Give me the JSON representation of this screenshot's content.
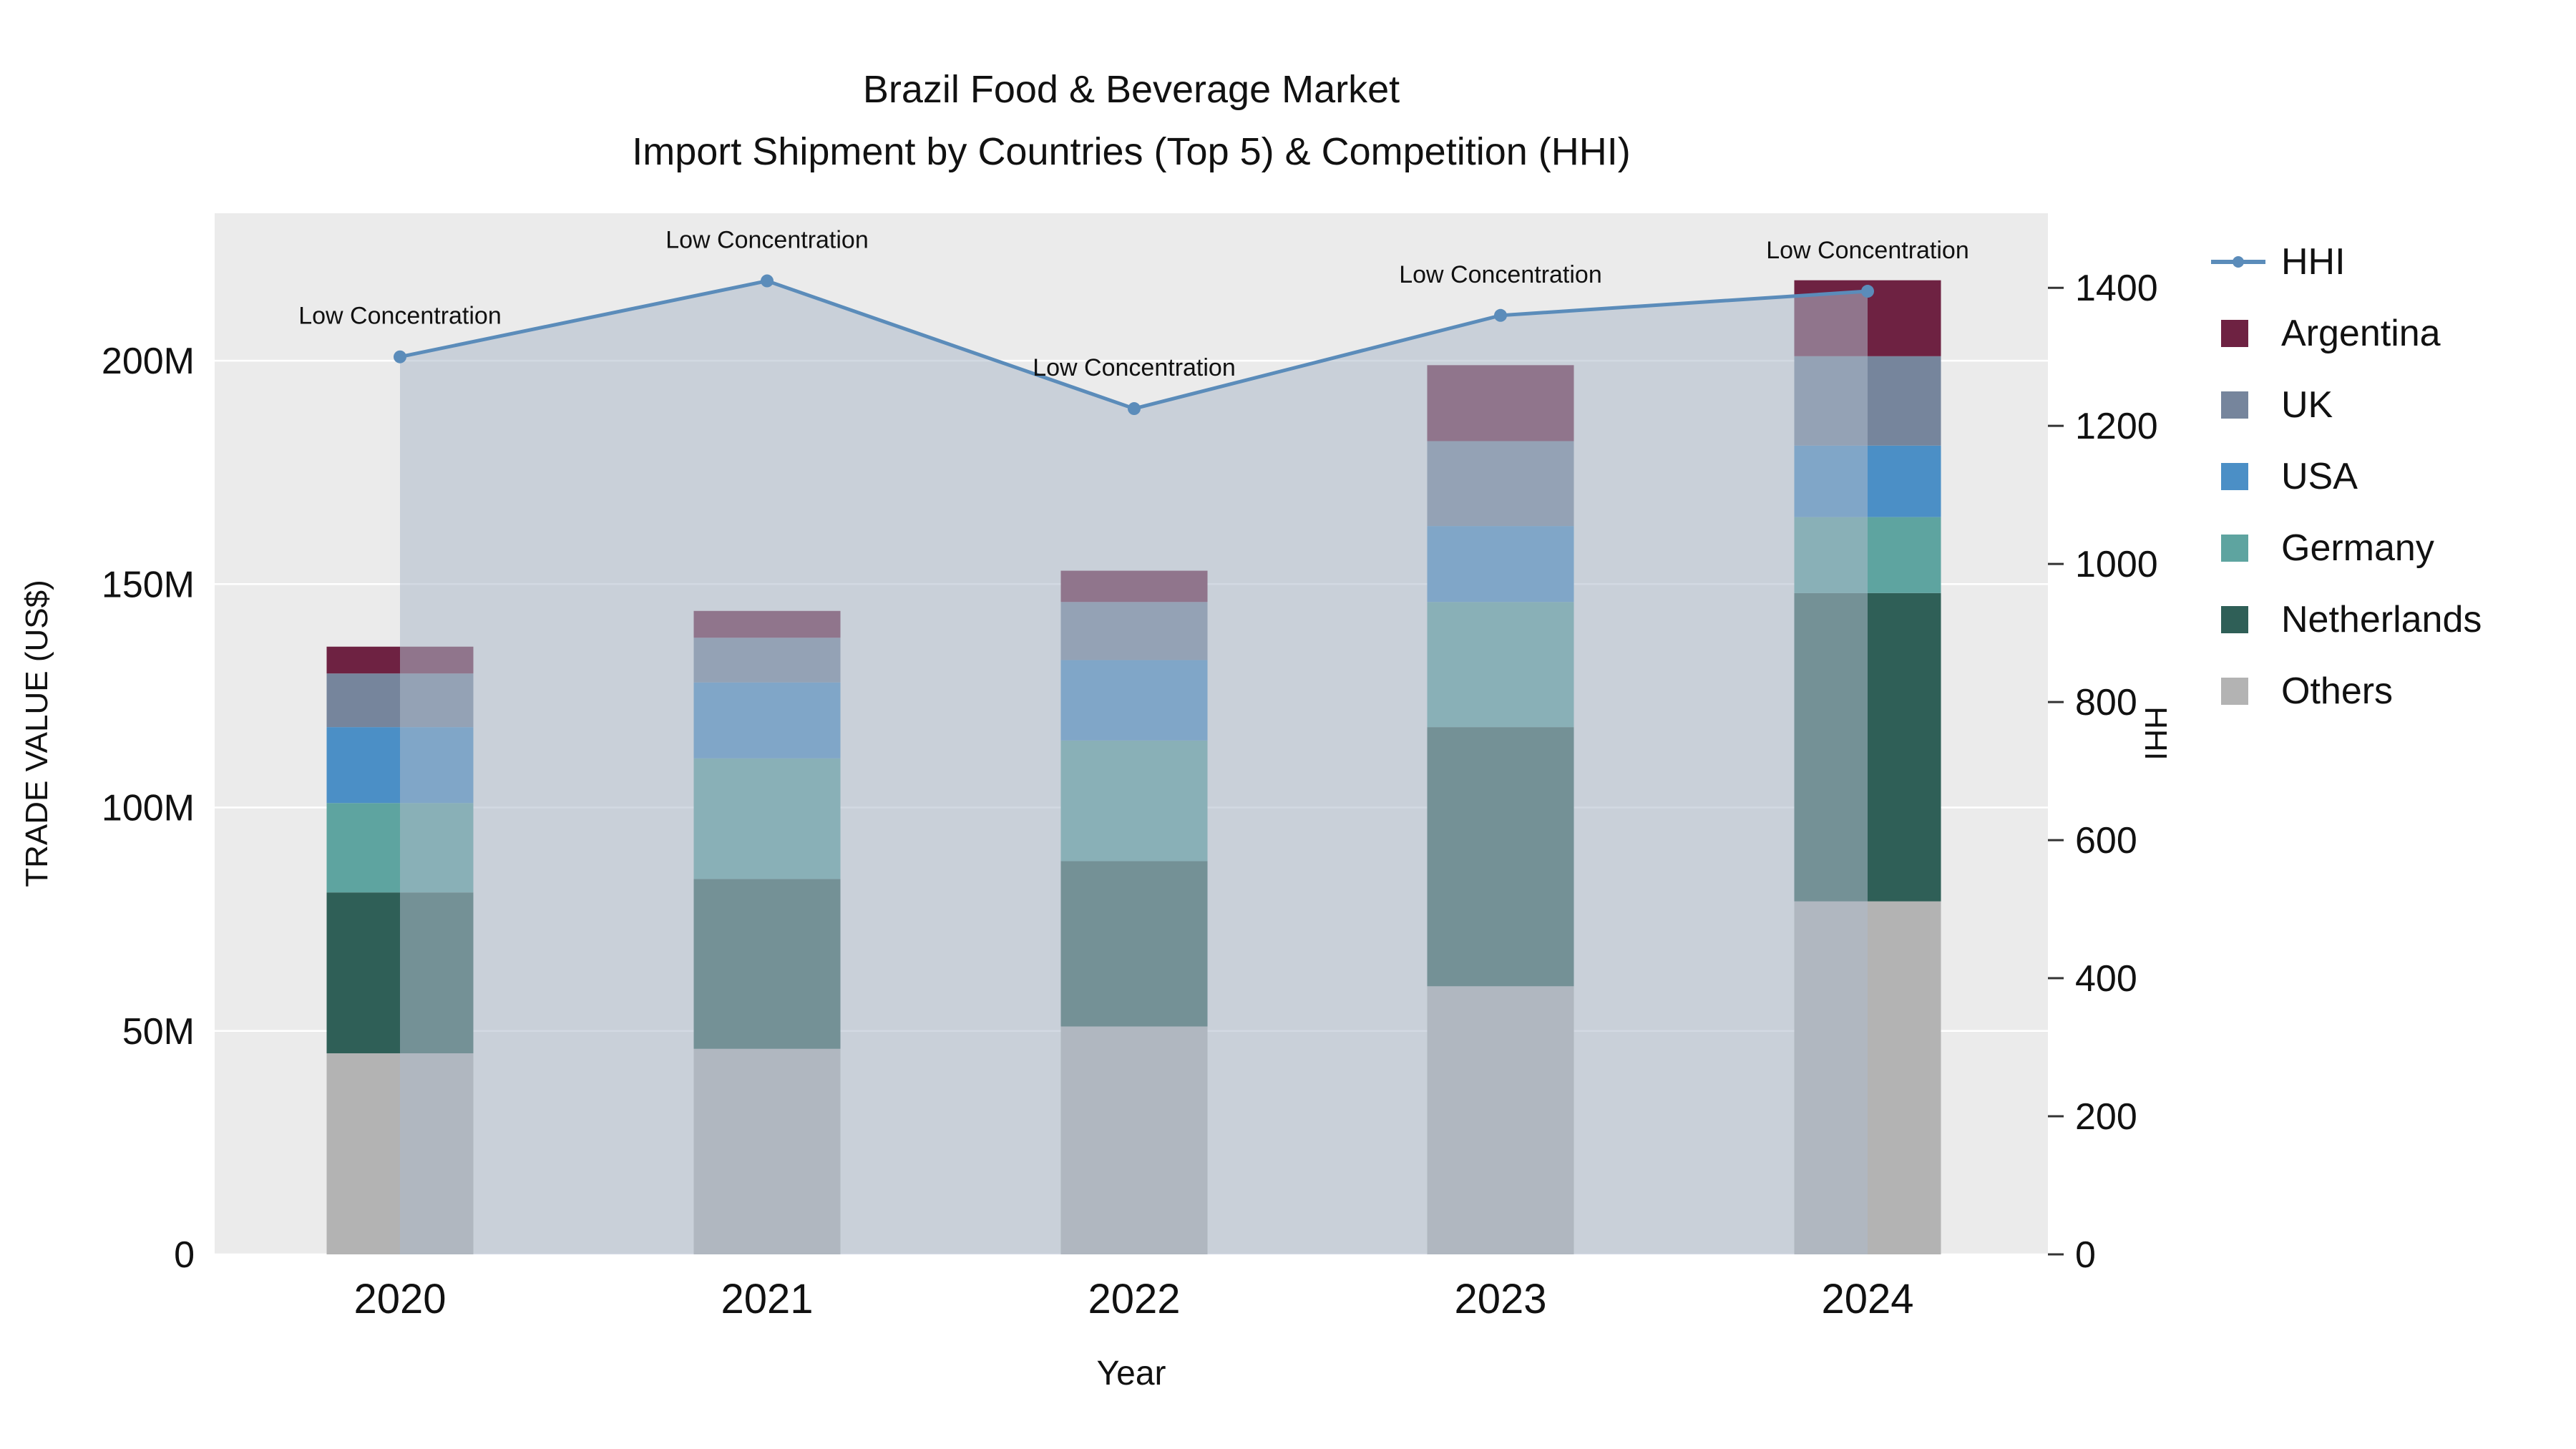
{
  "title": {
    "line1": "Brazil Food & Beverage Market",
    "line2": "Import Shipment by Countries (Top 5) & Competition (HHI)"
  },
  "axes": {
    "x_label": "Year",
    "y_left_label": "TRADE VALUE (US$)",
    "y_right_label": "HHI"
  },
  "legend": {
    "items": [
      "HHI",
      "Argentina",
      "UK",
      "USA",
      "Germany",
      "Netherlands",
      "Others"
    ]
  },
  "chart_data": {
    "type": "bar",
    "subtype": "stacked-bars-with-hhi-line-overlay",
    "title": "Brazil Food & Beverage Market — Import Shipment by Countries (Top 5) & Competition (HHI)",
    "categories": [
      "2020",
      "2021",
      "2022",
      "2023",
      "2024"
    ],
    "x_label": "Year",
    "plot_background": "#ebebeb",
    "grid": "horizontal-white",
    "legend_position": "right",
    "y_left": {
      "label": "TRADE VALUE (US$)",
      "units": "millions USD",
      "ticks": [
        0,
        50,
        100,
        150,
        200
      ],
      "tick_labels": [
        "0",
        "50M",
        "100M",
        "150M",
        "200M"
      ],
      "range": [
        0,
        233
      ]
    },
    "y_right": {
      "label": "HHI",
      "ticks": [
        0,
        200,
        400,
        600,
        800,
        1000,
        1200,
        1400
      ],
      "range": [
        0,
        1508
      ]
    },
    "bar_series": [
      {
        "name": "Others",
        "color": "#b3b3b3",
        "values": [
          45,
          46,
          51,
          60,
          79
        ]
      },
      {
        "name": "Netherlands",
        "color": "#2f5f57",
        "values": [
          36,
          38,
          37,
          58,
          69
        ]
      },
      {
        "name": "Germany",
        "color": "#5ea4a0",
        "values": [
          20,
          27,
          27,
          28,
          17
        ]
      },
      {
        "name": "USA",
        "color": "#4b8fc6",
        "values": [
          17,
          17,
          18,
          17,
          16
        ]
      },
      {
        "name": "UK",
        "color": "#76859c",
        "values": [
          12,
          10,
          13,
          19,
          20
        ]
      },
      {
        "name": "Argentina",
        "color": "#6e2242",
        "values": [
          6,
          6,
          7,
          17,
          17
        ]
      }
    ],
    "bar_totals": [
      136,
      144,
      153,
      199,
      218
    ],
    "line_series": {
      "name": "HHI",
      "axis": "right",
      "color": "#5b8cba",
      "area_fill": "rgba(173,186,203,0.55)",
      "values": [
        1300,
        1410,
        1225,
        1360,
        1395
      ],
      "annotations": [
        "Low Concentration",
        "Low Concentration",
        "Low Concentration",
        "Low Concentration",
        "Low Concentration"
      ]
    }
  }
}
